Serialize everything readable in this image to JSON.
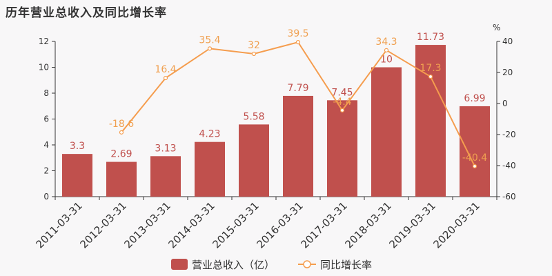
{
  "title": "历年营业总收入及同比增长率",
  "colors": {
    "bar": "#c0504d",
    "line": "#f59d4e",
    "axis": "#333333",
    "background": "#f8f7f8"
  },
  "chart_data": {
    "type": "bar+line",
    "categories": [
      "2011-03-31",
      "2012-03-31",
      "2013-03-31",
      "2014-03-31",
      "2015-03-31",
      "2016-03-31",
      "2017-03-31",
      "2018-03-31",
      "2019-03-31",
      "2020-03-31"
    ],
    "series": [
      {
        "name": "营业总收入（亿）",
        "type": "bar",
        "axis": "left",
        "values": [
          3.3,
          2.69,
          3.13,
          4.23,
          5.58,
          7.79,
          7.45,
          10,
          11.73,
          6.99
        ],
        "labels": [
          "3.3",
          "2.69",
          "3.13",
          "4.23",
          "5.58",
          "7.79",
          "7.45",
          "10",
          "11.73",
          "6.99"
        ]
      },
      {
        "name": "同比增长率",
        "type": "line",
        "axis": "right",
        "values": [
          null,
          -18.6,
          16.4,
          35.4,
          32,
          39.5,
          -4.4,
          34.3,
          17.3,
          -40.4
        ],
        "labels": [
          "",
          "-18.6",
          "16.4",
          "35.4",
          "32",
          "39.5",
          "-4.4",
          "34.3",
          "17.3",
          "-40.4"
        ]
      }
    ],
    "y_left": {
      "range": [
        0,
        12
      ],
      "ticks": [
        0,
        2,
        4,
        6,
        8,
        10,
        12
      ]
    },
    "y_right": {
      "range": [
        -60,
        40
      ],
      "ticks": [
        -60,
        -40,
        -20,
        0,
        20,
        40
      ],
      "unit": "%"
    },
    "legend_position": "bottom-center",
    "grid": false
  }
}
